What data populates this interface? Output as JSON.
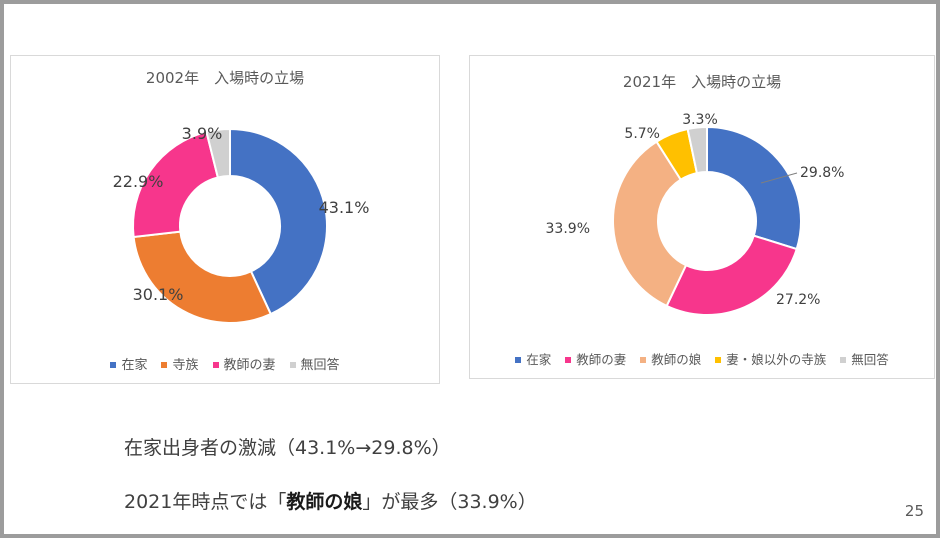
{
  "colors": {
    "blue": "#4472C4",
    "orange": "#ED7D31",
    "pink": "#F7368C",
    "peach": "#F4B183",
    "yellow": "#FFC000",
    "gray": "#D0D0D0"
  },
  "chart_data": [
    {
      "type": "pie",
      "subtype": "donut",
      "title": "2002年　入場時の立場",
      "categories": [
        "在家",
        "寺族",
        "教師の妻",
        "無回答"
      ],
      "values": [
        43.1,
        30.1,
        22.9,
        3.9
      ],
      "labels": [
        "43.1%",
        "30.1%",
        "22.9%",
        "3.9%"
      ],
      "colors": [
        "#4472C4",
        "#ED7D31",
        "#F7368C",
        "#D0D0D0"
      ],
      "legend": "bottom"
    },
    {
      "type": "pie",
      "subtype": "donut",
      "title": "2021年　入場時の立場",
      "categories": [
        "在家",
        "教師の妻",
        "教師の娘",
        "妻・娘以外の寺族",
        "無回答"
      ],
      "values": [
        29.8,
        27.2,
        33.9,
        5.7,
        3.3
      ],
      "labels": [
        "29.8%",
        "27.2%",
        "33.9%",
        "5.7%",
        "3.3%"
      ],
      "colors": [
        "#4472C4",
        "#F7368C",
        "#F4B183",
        "#FFC000",
        "#D0D0D0"
      ],
      "legend": "bottom"
    }
  ],
  "text": {
    "line1": "在家出身者の激減（43.1%→29.8%）",
    "line2_pre": "2021年時点では「",
    "line2_bold": "教師の娘",
    "line2_post": "」が最多（33.9%）",
    "page_number": "25"
  }
}
